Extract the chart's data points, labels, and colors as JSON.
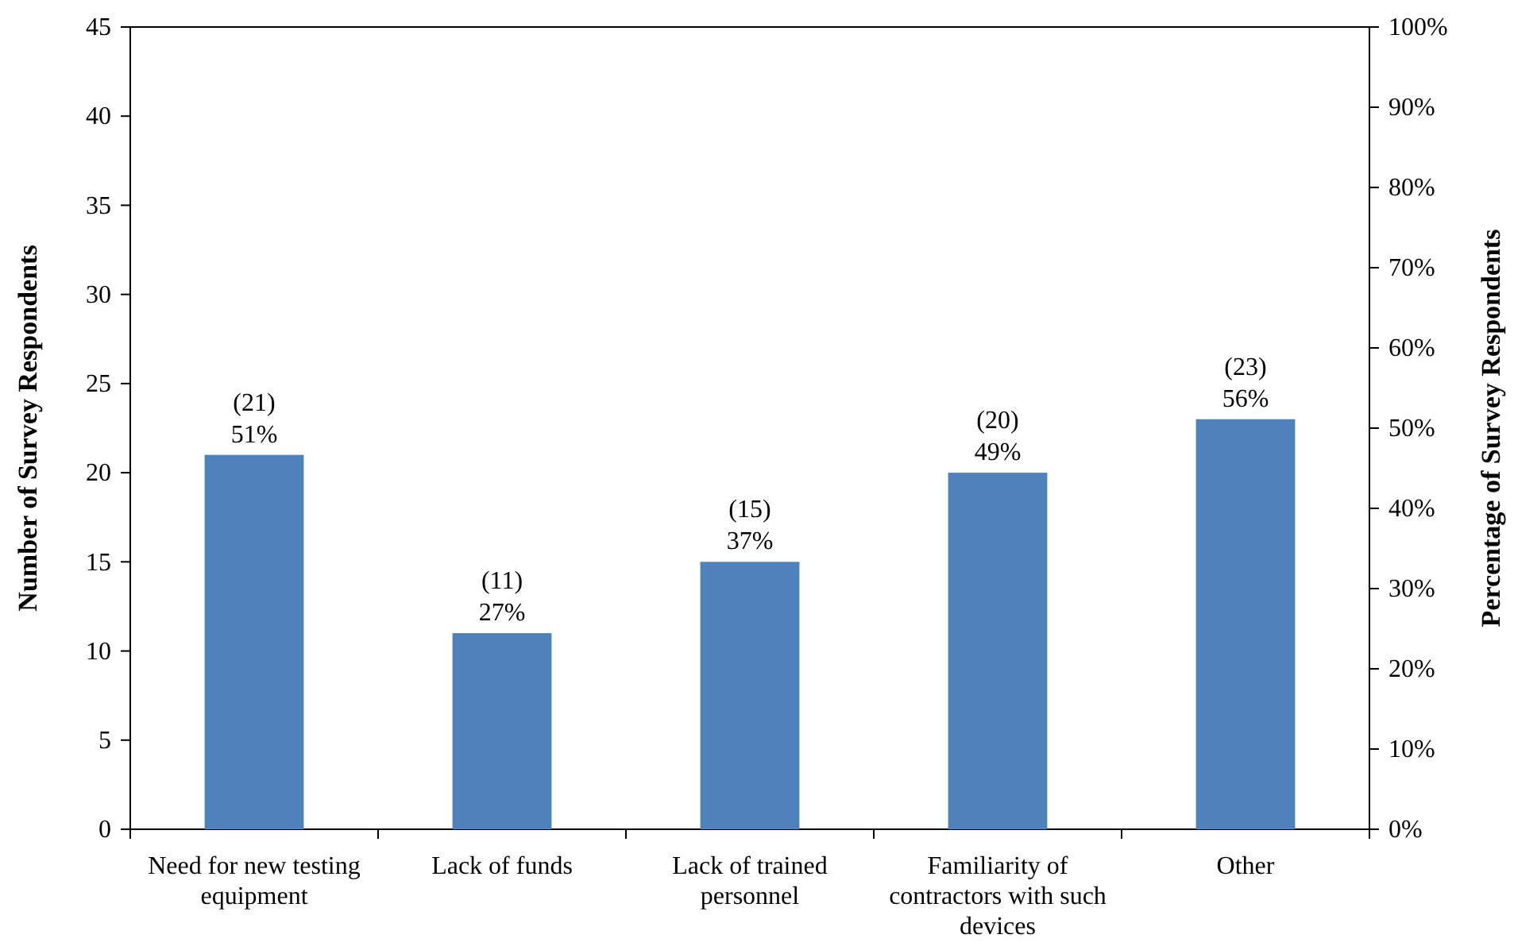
{
  "chart_data": {
    "type": "bar",
    "ylabel": "Number of Survey Respondents",
    "y2label": "Percentage of Survey Respondents",
    "categories": [
      "Need for new testing equipment",
      "Lack of funds",
      "Lack of trained personnel",
      "Familiarity of contractors with such devices",
      "Other"
    ],
    "series": [
      {
        "color": "#4f81bd",
        "values": [
          21,
          11,
          15,
          20,
          23
        ],
        "value_labels": [
          "(21)\n51%",
          "(11)\n27%",
          "(15)\n37%",
          "(20)\n49%",
          "(23)\n56%"
        ]
      }
    ],
    "ylim": [
      0,
      45
    ],
    "yticks": [
      0,
      5,
      10,
      15,
      20,
      25,
      30,
      35,
      40,
      45
    ],
    "y2lim": [
      0,
      100
    ],
    "y2ticks": [
      {
        "value": 0,
        "label": "0%"
      },
      {
        "value": 10,
        "label": "10%"
      },
      {
        "value": 20,
        "label": "20%"
      },
      {
        "value": 30,
        "label": "30%"
      },
      {
        "value": 40,
        "label": "40%"
      },
      {
        "value": 50,
        "label": "50%"
      },
      {
        "value": 60,
        "label": "60%"
      },
      {
        "value": 70,
        "label": "70%"
      },
      {
        "value": 80,
        "label": "80%"
      },
      {
        "value": 90,
        "label": "90%"
      },
      {
        "value": 100,
        "label": "100%"
      }
    ],
    "grid": false
  }
}
